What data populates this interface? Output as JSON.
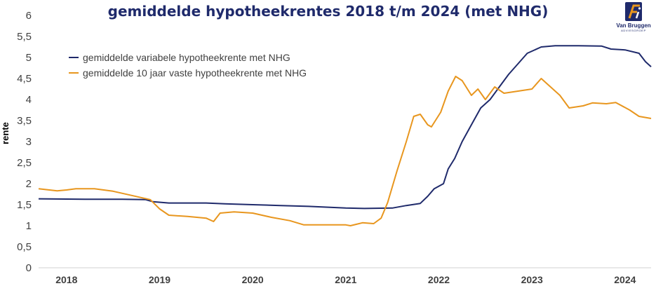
{
  "chart_data": {
    "type": "line",
    "title": "gemiddelde hypotheekrentes 2018 t/m 2024 (met NHG)",
    "ylabel": "rente",
    "xlabel": "",
    "ylim": [
      0,
      6
    ],
    "yticks": [
      "0",
      "0,5",
      "1",
      "1,5",
      "2",
      "2,5",
      "3",
      "3,5",
      "4",
      "4,5",
      "5",
      "5,5",
      "6"
    ],
    "xlim": [
      2017.7,
      2024.28
    ],
    "xticks": [
      {
        "label": "2018",
        "x": 2018.0
      },
      {
        "label": "2019",
        "x": 2019.0
      },
      {
        "label": "2020",
        "x": 2020.0
      },
      {
        "label": "2021",
        "x": 2021.0
      },
      {
        "label": "2022",
        "x": 2022.0
      },
      {
        "label": "2023",
        "x": 2023.0
      },
      {
        "label": "2024",
        "x": 2024.0
      }
    ],
    "grid": false,
    "legend_position": "top-left",
    "series": [
      {
        "name": "gemiddelde variabele hypotheekrente met NHG",
        "color": "#1f2a6b",
        "points": [
          [
            2017.7,
            1.64
          ],
          [
            2018.2,
            1.63
          ],
          [
            2018.6,
            1.63
          ],
          [
            2018.85,
            1.62
          ],
          [
            2018.93,
            1.57
          ],
          [
            2019.1,
            1.54
          ],
          [
            2019.5,
            1.54
          ],
          [
            2019.7,
            1.52
          ],
          [
            2020.0,
            1.5
          ],
          [
            2020.3,
            1.48
          ],
          [
            2020.6,
            1.46
          ],
          [
            2021.0,
            1.42
          ],
          [
            2021.2,
            1.41
          ],
          [
            2021.5,
            1.42
          ],
          [
            2021.65,
            1.48
          ],
          [
            2021.8,
            1.53
          ],
          [
            2021.88,
            1.7
          ],
          [
            2021.95,
            1.88
          ],
          [
            2022.05,
            2.0
          ],
          [
            2022.1,
            2.35
          ],
          [
            2022.17,
            2.6
          ],
          [
            2022.25,
            3.0
          ],
          [
            2022.35,
            3.4
          ],
          [
            2022.45,
            3.8
          ],
          [
            2022.55,
            4.0
          ],
          [
            2022.65,
            4.3
          ],
          [
            2022.75,
            4.6
          ],
          [
            2022.85,
            4.85
          ],
          [
            2022.95,
            5.1
          ],
          [
            2023.1,
            5.25
          ],
          [
            2023.25,
            5.28
          ],
          [
            2023.5,
            5.28
          ],
          [
            2023.75,
            5.27
          ],
          [
            2023.85,
            5.2
          ],
          [
            2024.0,
            5.18
          ],
          [
            2024.15,
            5.1
          ],
          [
            2024.22,
            4.9
          ],
          [
            2024.28,
            4.78
          ]
        ]
      },
      {
        "name": "gemiddelde 10 jaar vaste hypotheekrente met NHG",
        "color": "#e8961e",
        "points": [
          [
            2017.7,
            1.88
          ],
          [
            2017.9,
            1.83
          ],
          [
            2018.0,
            1.85
          ],
          [
            2018.1,
            1.88
          ],
          [
            2018.3,
            1.88
          ],
          [
            2018.5,
            1.82
          ],
          [
            2018.7,
            1.72
          ],
          [
            2018.9,
            1.62
          ],
          [
            2019.0,
            1.4
          ],
          [
            2019.1,
            1.25
          ],
          [
            2019.3,
            1.22
          ],
          [
            2019.5,
            1.18
          ],
          [
            2019.58,
            1.1
          ],
          [
            2019.65,
            1.3
          ],
          [
            2019.8,
            1.33
          ],
          [
            2020.0,
            1.3
          ],
          [
            2020.2,
            1.2
          ],
          [
            2020.4,
            1.12
          ],
          [
            2020.55,
            1.02
          ],
          [
            2020.8,
            1.02
          ],
          [
            2021.0,
            1.02
          ],
          [
            2021.05,
            1.0
          ],
          [
            2021.18,
            1.07
          ],
          [
            2021.3,
            1.05
          ],
          [
            2021.38,
            1.18
          ],
          [
            2021.45,
            1.55
          ],
          [
            2021.55,
            2.3
          ],
          [
            2021.65,
            3.0
          ],
          [
            2021.73,
            3.6
          ],
          [
            2021.8,
            3.65
          ],
          [
            2021.88,
            3.4
          ],
          [
            2021.92,
            3.35
          ],
          [
            2022.02,
            3.7
          ],
          [
            2022.1,
            4.2
          ],
          [
            2022.18,
            4.55
          ],
          [
            2022.25,
            4.45
          ],
          [
            2022.35,
            4.1
          ],
          [
            2022.42,
            4.25
          ],
          [
            2022.5,
            4.0
          ],
          [
            2022.6,
            4.3
          ],
          [
            2022.7,
            4.15
          ],
          [
            2022.85,
            4.2
          ],
          [
            2023.0,
            4.25
          ],
          [
            2023.1,
            4.5
          ],
          [
            2023.2,
            4.3
          ],
          [
            2023.3,
            4.1
          ],
          [
            2023.4,
            3.8
          ],
          [
            2023.55,
            3.85
          ],
          [
            2023.65,
            3.92
          ],
          [
            2023.8,
            3.9
          ],
          [
            2023.9,
            3.93
          ],
          [
            2024.05,
            3.75
          ],
          [
            2024.15,
            3.6
          ],
          [
            2024.28,
            3.55
          ]
        ]
      }
    ]
  },
  "logo": {
    "mark": "fi",
    "name": "Van Bruggen",
    "subtitle": "ADVIESGROEP",
    "blue": "#1f2a6b",
    "orange": "#e8961e"
  }
}
